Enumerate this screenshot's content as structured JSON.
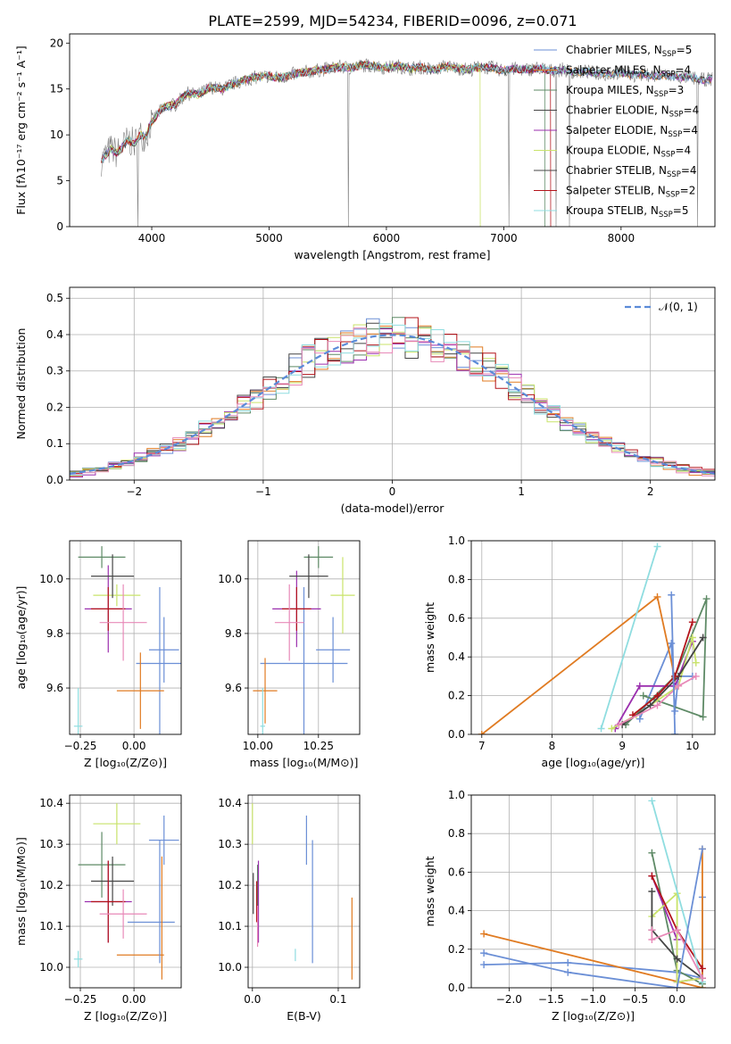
{
  "figure": {
    "title": "PLATE=2599, MJD=54234, FIBERID=0096, z=0.071"
  },
  "colors": {
    "C1": "#6b8fd6",
    "C2": "#e07b22",
    "C3": "#5e8a66",
    "C4": "#9b2fae",
    "C5": "#c9e36a",
    "C6": "#454545",
    "C7": "#b3131a",
    "C8": "#8fdde0",
    "C9": "#e889b8",
    "data": "#808080",
    "normal": "#5b8bd8",
    "grid": "#b0b0b0"
  },
  "models": [
    {
      "label": "Chabrier MILES, N",
      "nssp": "=5",
      "color": "#6b8fd6"
    },
    {
      "label": "Salpeter MILES, N",
      "nssp": "=4",
      "color": "#e07b22"
    },
    {
      "label": "Kroupa MILES, N",
      "nssp": "=3",
      "color": "#5e8a66"
    },
    {
      "label": "Chabrier ELODIE, N",
      "nssp": "=4",
      "color": "#454545"
    },
    {
      "label": "Salpeter ELODIE, N",
      "nssp": "=4",
      "color": "#9b2fae"
    },
    {
      "label": "Kroupa ELODIE, N",
      "nssp": "=4",
      "color": "#c9e36a"
    },
    {
      "label": "Chabrier STELIB, N",
      "nssp": "=4",
      "color": "#454545"
    },
    {
      "label": "Salpeter STELIB, N",
      "nssp": "=2",
      "color": "#b3131a"
    },
    {
      "label": "Kroupa STELIB, N",
      "nssp": "=5",
      "color": "#8fdde0"
    }
  ],
  "legend_sub": "SSP",
  "normal_legend": "𝒩(0, 1)",
  "chart_data": [
    {
      "id": "spectrum",
      "type": "line",
      "xlabel": "wavelength [Angstrom, rest frame]",
      "ylabel": "Flux [fλ10⁻¹⁷ erg cm⁻² s⁻¹ A⁻¹]",
      "xlim": [
        3300,
        8800
      ],
      "ylim": [
        0,
        21
      ],
      "xticks": [
        4000,
        5000,
        6000,
        7000,
        8000
      ],
      "yticks": [
        0,
        5,
        10,
        15,
        20
      ],
      "legend": "right",
      "data_x": [
        3570,
        3650,
        3700,
        3760,
        3800,
        3850,
        3900,
        3950,
        4000,
        4100,
        4200,
        4300,
        4400,
        4500,
        4600,
        4700,
        4800,
        4900,
        5000,
        5100,
        5200,
        5300,
        5400,
        5500,
        5600,
        5700,
        5800,
        5900,
        6000,
        6100,
        6200,
        6300,
        6400,
        6500,
        6600,
        6700,
        6800,
        6900,
        7000,
        7100,
        7200,
        7300,
        7400,
        7500,
        7600,
        7700,
        7800,
        7900,
        8000,
        8100,
        8200,
        8300,
        8400,
        8500,
        8600,
        8700,
        8780
      ],
      "data_y": [
        7.2,
        8.5,
        8.0,
        8.8,
        9.5,
        9.0,
        10.0,
        9.8,
        11.5,
        13.0,
        13.3,
        14.5,
        14.4,
        15.2,
        15.0,
        15.6,
        16.0,
        16.3,
        16.4,
        16.2,
        16.6,
        16.8,
        17.0,
        17.2,
        17.4,
        17.3,
        17.6,
        17.5,
        17.3,
        17.5,
        17.2,
        17.4,
        17.0,
        17.5,
        17.3,
        17.1,
        17.4,
        17.3,
        17.0,
        17.2,
        17.1,
        17.3,
        17.0,
        17.1,
        16.8,
        16.9,
        16.7,
        16.6,
        16.8,
        16.5,
        16.6,
        16.4,
        16.5,
        16.3,
        16.2,
        16.0,
        16.1
      ],
      "model_end": [
        8780,
        8780,
        7350,
        8780,
        8780,
        6800,
        8780,
        7400,
        8780
      ],
      "model_start": [
        3580,
        3600,
        3570,
        3570,
        3570,
        3570,
        3570,
        3570,
        3570
      ]
    },
    {
      "id": "residuals",
      "type": "histogram",
      "xlabel": "(data-model)/error",
      "ylabel": "Normed distribution",
      "xlim": [
        -2.5,
        2.5
      ],
      "ylim": [
        0,
        0.53
      ],
      "xticks": [
        -2,
        -1,
        0,
        1,
        2
      ],
      "xticklabels": [
        "−2",
        "−1",
        "0",
        "1",
        "2"
      ],
      "yticks": [
        0.0,
        0.1,
        0.2,
        0.3,
        0.4,
        0.5
      ],
      "yticklabels": [
        "0.0",
        "0.1",
        "0.2",
        "0.3",
        "0.4",
        "0.5"
      ],
      "bin_width": 0.1,
      "bin_start": -2.5,
      "legend": "top-right"
    },
    {
      "id": "z_age",
      "type": "errorbar",
      "xlabel": "Z [log₁₀(Z/Z⊙)]",
      "ylabel": "age  [log₁₀(age/yr)]",
      "xlim": [
        -0.3,
        0.22
      ],
      "ylim": [
        9.43,
        10.14
      ],
      "xticks": [
        -0.25,
        0.0
      ],
      "xticklabels": [
        "−0.25",
        "0.00"
      ],
      "yticks": [
        9.6,
        9.8,
        10.0
      ],
      "yticklabels": [
        "9.6",
        "9.8",
        "10.0"
      ],
      "points": [
        {
          "c": 0,
          "x": 0.12,
          "y": 9.69,
          "xe": 0.11,
          "ye": 0.28
        },
        {
          "c": 1,
          "x": 0.03,
          "y": 9.59,
          "xe": 0.11,
          "ye": 0.14
        },
        {
          "c": 2,
          "x": -0.15,
          "y": 10.08,
          "xe": 0.11,
          "ye": 0.04
        },
        {
          "c": 3,
          "x": -0.12,
          "y": 9.89,
          "xe": 0.11,
          "ye": 0.16
        },
        {
          "c": 4,
          "x": -0.08,
          "y": 9.94,
          "xe": 0.11,
          "ye": 0.04
        },
        {
          "c": 5,
          "x": -0.1,
          "y": 10.01,
          "xe": 0.1,
          "ye": 0.08
        },
        {
          "c": 6,
          "x": -0.12,
          "y": 9.89,
          "xe": 0.08,
          "ye": 0.08
        },
        {
          "c": 7,
          "x": -0.26,
          "y": 9.46,
          "xe": 0.02,
          "ye": 0.14
        },
        {
          "c": 8,
          "x": -0.05,
          "y": 9.84,
          "xe": 0.11,
          "ye": 0.14
        },
        {
          "c": 9,
          "x": 0.14,
          "y": 9.74,
          "xe": 0.07,
          "ye": 0.12
        }
      ]
    },
    {
      "id": "mass_age",
      "type": "errorbar",
      "xlabel": "mass [log₁₀(M/M⊙)]",
      "ylabel": "",
      "xlim": [
        9.96,
        10.42
      ],
      "ylim": [
        9.43,
        10.14
      ],
      "xticks": [
        10.0,
        10.25
      ],
      "xticklabels": [
        "10.00",
        "10.25"
      ],
      "yticks": [
        9.6,
        9.8,
        10.0
      ],
      "yticklabels": [
        "9.6",
        "9.8",
        "10.0"
      ],
      "points": [
        {
          "c": 0,
          "x": 10.19,
          "y": 9.69,
          "xe": 0.18,
          "ye": 0.28
        },
        {
          "c": 1,
          "x": 10.03,
          "y": 9.59,
          "xe": 0.05,
          "ye": 0.12
        },
        {
          "c": 2,
          "x": 10.25,
          "y": 10.08,
          "xe": 0.06,
          "ye": 0.04
        },
        {
          "c": 3,
          "x": 10.16,
          "y": 9.89,
          "xe": 0.1,
          "ye": 0.14
        },
        {
          "c": 4,
          "x": 10.35,
          "y": 9.94,
          "xe": 0.05,
          "ye": 0.14
        },
        {
          "c": 5,
          "x": 10.21,
          "y": 10.01,
          "xe": 0.08,
          "ye": 0.08
        },
        {
          "c": 6,
          "x": 10.16,
          "y": 9.89,
          "xe": 0.06,
          "ye": 0.08
        },
        {
          "c": 7,
          "x": 10.02,
          "y": 9.46,
          "xe": 0.01,
          "ye": 0.14
        },
        {
          "c": 8,
          "x": 10.13,
          "y": 9.84,
          "xe": 0.06,
          "ye": 0.14
        },
        {
          "c": 9,
          "x": 10.31,
          "y": 9.74,
          "xe": 0.07,
          "ye": 0.12
        }
      ]
    },
    {
      "id": "age_weight",
      "type": "line",
      "xlabel": "age  [log₁₀(age/yr)]",
      "ylabel": "mass weight",
      "xlim": [
        6.85,
        10.32
      ],
      "ylim": [
        0,
        1.0
      ],
      "xticks": [
        7,
        8,
        9,
        10
      ],
      "xticklabels": [
        "7",
        "8",
        "9",
        "10"
      ],
      "yticks": [
        0.0,
        0.2,
        0.4,
        0.6,
        0.8,
        1.0
      ],
      "yticklabels": [
        "0.0",
        "0.2",
        "0.4",
        "0.6",
        "0.8",
        "1.0"
      ],
      "series": [
        {
          "c": 0,
          "x": [
            9.25,
            9.7,
            9.75,
            9.8,
            10.0
          ],
          "y": [
            0.08,
            0.47,
            0.12,
            0.3,
            0.3
          ]
        },
        {
          "c": 1,
          "x": [
            7.0,
            9.5,
            9.75
          ],
          "y": [
            0.0,
            0.71,
            0.29
          ]
        },
        {
          "c": 2,
          "x": [
            9.3,
            10.15,
            10.2,
            9.75,
            9.05
          ],
          "y": [
            0.2,
            0.09,
            0.7,
            0.3,
            0.05
          ]
        },
        {
          "c": 3,
          "x": [
            8.9,
            9.25,
            9.75,
            10.0
          ],
          "y": [
            0.03,
            0.25,
            0.25,
            0.48
          ]
        },
        {
          "c": 4,
          "x": [
            8.85,
            9.2,
            9.8,
            10.0,
            10.05
          ],
          "y": [
            0.03,
            0.1,
            0.25,
            0.5,
            0.37
          ]
        },
        {
          "c": 5,
          "x": [
            9.0,
            9.4,
            9.8,
            10.15
          ],
          "y": [
            0.05,
            0.15,
            0.3,
            0.5
          ]
        },
        {
          "c": 6,
          "x": [
            9.15,
            9.5,
            9.75,
            10.0
          ],
          "y": [
            0.1,
            0.2,
            0.3,
            0.58
          ]
        },
        {
          "c": 7,
          "x": [
            8.7,
            9.5
          ],
          "y": [
            0.03,
            0.97
          ]
        },
        {
          "c": 8,
          "x": [
            8.95,
            9.5,
            9.8,
            10.05
          ],
          "y": [
            0.05,
            0.15,
            0.25,
            0.3
          ]
        },
        {
          "c": 9,
          "x": [
            9.7,
            9.75
          ],
          "y": [
            0.72,
            0.0
          ]
        }
      ]
    },
    {
      "id": "z_mass",
      "type": "errorbar",
      "xlabel": "Z [log₁₀(Z/Z⊙)]",
      "ylabel": "mass [log₁₀(M/M⊙)]",
      "xlim": [
        -0.3,
        0.22
      ],
      "ylim": [
        9.95,
        10.42
      ],
      "xticks": [
        -0.25,
        0.0
      ],
      "xticklabels": [
        "−0.25",
        "0.00"
      ],
      "yticks": [
        10.0,
        10.1,
        10.2,
        10.3,
        10.4
      ],
      "yticklabels": [
        "10.0",
        "10.1",
        "10.2",
        "10.3",
        "10.4"
      ],
      "points": [
        {
          "c": 0,
          "x": 0.08,
          "y": 10.11,
          "xe": 0.11,
          "ye": 0.0
        },
        {
          "c": 1,
          "x": 0.03,
          "y": 10.03,
          "xe": 0.11,
          "ye": 0.0
        },
        {
          "c": 2,
          "x": -0.15,
          "y": 10.25,
          "xe": 0.11,
          "ye": 0.08
        },
        {
          "c": 3,
          "x": -0.12,
          "y": 10.16,
          "xe": 0.11,
          "ye": 0.1
        },
        {
          "c": 4,
          "x": -0.08,
          "y": 10.35,
          "xe": 0.11,
          "ye": 0.05
        },
        {
          "c": 5,
          "x": -0.1,
          "y": 10.21,
          "xe": 0.1,
          "ye": 0.06
        },
        {
          "c": 6,
          "x": -0.12,
          "y": 10.16,
          "xe": 0.08,
          "ye": 0.1
        },
        {
          "c": 7,
          "x": -0.26,
          "y": 10.02,
          "xe": 0.02,
          "ye": 0.02
        },
        {
          "c": 8,
          "x": -0.05,
          "y": 10.13,
          "xe": 0.11,
          "ye": 0.06
        },
        {
          "c": 9,
          "x": 0.14,
          "y": 10.31,
          "xe": 0.07,
          "ye": 0.06
        },
        {
          "c": 0,
          "x": 0.12,
          "y": 10.16,
          "xe": 0.0,
          "ye": 0.15
        },
        {
          "c": 1,
          "x": 0.13,
          "y": 10.12,
          "xe": 0.0,
          "ye": 0.15
        }
      ]
    },
    {
      "id": "ebv_mass",
      "type": "errorbar",
      "xlabel": "E(B-V)",
      "ylabel": "",
      "xlim": [
        -0.005,
        0.125
      ],
      "ylim": [
        9.95,
        10.42
      ],
      "xticks": [
        0.0,
        0.1
      ],
      "xticklabels": [
        "0.0",
        "0.1"
      ],
      "yticks": [
        10.0,
        10.1,
        10.2,
        10.3,
        10.4
      ],
      "yticklabels": [
        "10.0",
        "10.1",
        "10.2",
        "10.3",
        "10.4"
      ],
      "points": [
        {
          "c": 0,
          "x": 0.07,
          "y": 10.16,
          "xe": 0.0,
          "ye": 0.15
        },
        {
          "c": 1,
          "x": 0.116,
          "y": 10.07,
          "xe": 0.0,
          "ye": 0.1
        },
        {
          "c": 2,
          "x": 0.006,
          "y": 10.2,
          "xe": 0.0,
          "ye": 0.05
        },
        {
          "c": 3,
          "x": 0.007,
          "y": 10.16,
          "xe": 0.0,
          "ye": 0.1
        },
        {
          "c": 4,
          "x": 0.0,
          "y": 10.35,
          "xe": 0.0,
          "ye": 0.05
        },
        {
          "c": 5,
          "x": 0.001,
          "y": 10.18,
          "xe": 0.0,
          "ye": 0.05
        },
        {
          "c": 6,
          "x": 0.005,
          "y": 10.16,
          "xe": 0.0,
          "ye": 0.05
        },
        {
          "c": 7,
          "x": 0.05,
          "y": 10.03,
          "xe": 0.0,
          "ye": 0.015
        },
        {
          "c": 8,
          "x": 0.006,
          "y": 10.1,
          "xe": 0.0,
          "ye": 0.05
        },
        {
          "c": 9,
          "x": 0.063,
          "y": 10.31,
          "xe": 0.0,
          "ye": 0.06
        }
      ]
    },
    {
      "id": "z_weight",
      "type": "line",
      "xlabel": "Z [log₁₀(Z/Z⊙)]",
      "ylabel": "mass weight",
      "xlim": [
        -2.45,
        0.45
      ],
      "ylim": [
        0,
        1.0
      ],
      "xticks": [
        -2.0,
        -1.5,
        -1.0,
        -0.5,
        0.0
      ],
      "xticklabels": [
        "−2.0",
        "−1.5",
        "−1.0",
        "−0.5",
        "0.0"
      ],
      "yticks": [
        0.0,
        0.2,
        0.4,
        0.6,
        0.8,
        1.0
      ],
      "yticklabels": [
        "0.0",
        "0.2",
        "0.4",
        "0.6",
        "0.8",
        "1.0"
      ],
      "series": [
        {
          "c": 0,
          "x": [
            -2.3,
            -1.3,
            0.0,
            0.3,
            0.3
          ],
          "y": [
            0.12,
            0.13,
            0.08,
            0.05,
            0.47
          ]
        },
        {
          "c": 1,
          "x": [
            -2.3,
            0.3,
            0.3
          ],
          "y": [
            0.28,
            0.0,
            0.72
          ]
        },
        {
          "c": 2,
          "x": [
            -0.3,
            0.0,
            0.3
          ],
          "y": [
            0.7,
            0.09,
            0.02
          ]
        },
        {
          "c": 3,
          "x": [
            -0.3,
            0.0,
            0.0,
            0.3
          ],
          "y": [
            0.58,
            0.25,
            0.03,
            0.05
          ]
        },
        {
          "c": 4,
          "x": [
            -0.3,
            0.0,
            0.0,
            0.3
          ],
          "y": [
            0.37,
            0.49,
            0.03,
            0.05
          ]
        },
        {
          "c": 5,
          "x": [
            -0.3,
            -0.3,
            0.0,
            0.3
          ],
          "y": [
            0.5,
            0.3,
            0.15,
            0.05
          ]
        },
        {
          "c": 6,
          "x": [
            -0.3,
            0.0,
            0.3
          ],
          "y": [
            0.58,
            0.3,
            0.1
          ]
        },
        {
          "c": 7,
          "x": [
            -0.3,
            0.3
          ],
          "y": [
            0.97,
            0.03
          ]
        },
        {
          "c": 8,
          "x": [
            -0.3,
            -0.3,
            0.0,
            0.3
          ],
          "y": [
            0.3,
            0.25,
            0.3,
            0.05
          ]
        },
        {
          "c": 9,
          "x": [
            -2.3,
            -1.3,
            0.0,
            0.3
          ],
          "y": [
            0.18,
            0.08,
            0.0,
            0.72
          ]
        }
      ]
    }
  ]
}
